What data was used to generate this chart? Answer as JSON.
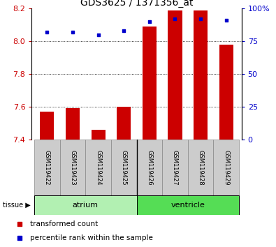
{
  "title": "GDS3625 / 1371356_at",
  "samples": [
    "GSM119422",
    "GSM119423",
    "GSM119424",
    "GSM119425",
    "GSM119426",
    "GSM119427",
    "GSM119428",
    "GSM119429"
  ],
  "transformed_count": [
    7.57,
    7.59,
    7.46,
    7.6,
    8.09,
    8.19,
    8.19,
    7.98
  ],
  "percentile_rank": [
    82,
    82,
    80,
    83,
    90,
    92,
    92,
    91
  ],
  "ylim_left": [
    7.4,
    8.2
  ],
  "ylim_right": [
    0,
    100
  ],
  "yticks_left": [
    7.4,
    7.6,
    7.8,
    8.0,
    8.2
  ],
  "yticks_right": [
    0,
    25,
    50,
    75,
    100
  ],
  "bar_color": "#cc0000",
  "dot_color": "#0000cc",
  "bar_bottom": 7.4,
  "tissue_colors": {
    "atrium": "#b2f0b2",
    "ventricle": "#55dd55"
  },
  "legend_items": [
    {
      "label": "transformed count",
      "color": "#cc0000"
    },
    {
      "label": "percentile rank within the sample",
      "color": "#0000cc"
    }
  ],
  "background_color": "white",
  "bar_width": 0.55,
  "gridline_yticks": [
    7.6,
    7.8,
    8.0
  ]
}
